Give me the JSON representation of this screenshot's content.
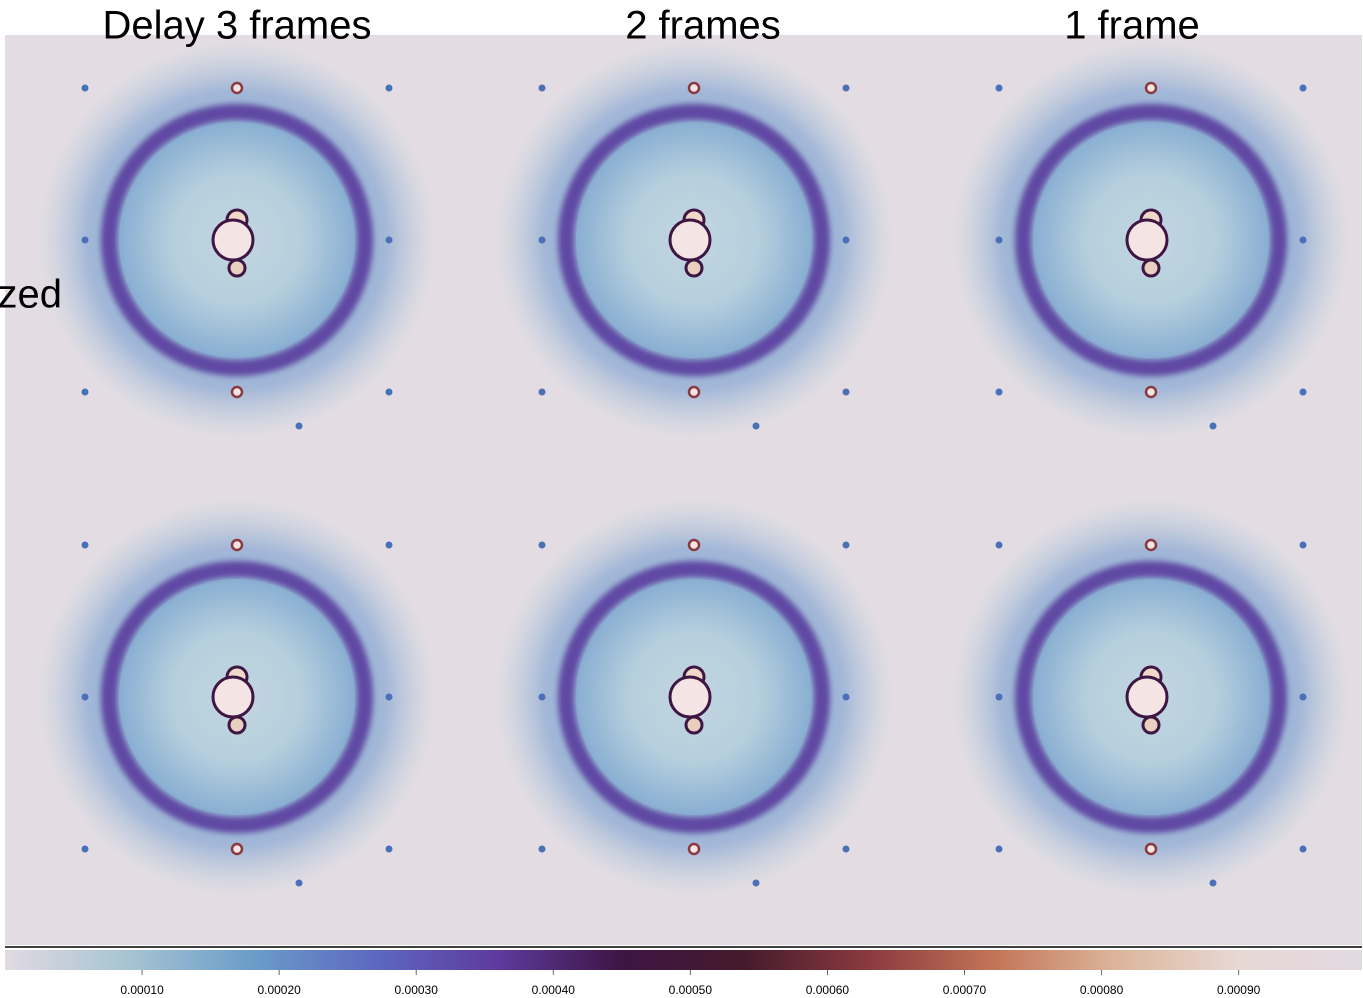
{
  "chart_data": {
    "type": "image_grid",
    "panel_titles": [
      "Delay 3 frames",
      "2 frames",
      "1 frame"
    ],
    "side_label": "zed",
    "colorbar": {
      "clim": [
        0,
        0.00099
      ],
      "ticks": [
        {
          "value": 0.0001,
          "label": "0.00010"
        },
        {
          "value": 0.0002,
          "label": "0.00020"
        },
        {
          "value": 0.0003,
          "label": "0.00030"
        },
        {
          "value": 0.0004,
          "label": "0.00040"
        },
        {
          "value": 0.0005,
          "label": "0.00050"
        },
        {
          "value": 0.0006,
          "label": "0.00060"
        },
        {
          "value": 0.0007,
          "label": "0.00070"
        },
        {
          "value": 0.0008,
          "label": "0.00080"
        },
        {
          "value": 0.0009,
          "label": "0.00090"
        }
      ],
      "colormap": [
        "#e2d9e2",
        "#a6c4d2",
        "#6b9dc9",
        "#5d68c0",
        "#5e3a9c",
        "#3e1543",
        "#451b2c",
        "#8a3a3e",
        "#c27357",
        "#dcb59a",
        "#e7d8d4",
        "#e2d9e2"
      ]
    }
  }
}
